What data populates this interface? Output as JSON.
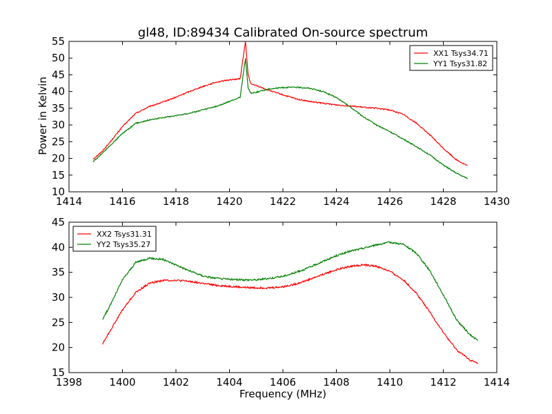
{
  "figure": {
    "title": "gl48, ID:89434 Calibrated On-source spectrum",
    "ylabel": "Power in Kelvin",
    "xlabel": "Frequency (MHz)"
  },
  "chart_data": [
    {
      "type": "line",
      "title": "gl48, ID:89434 Calibrated On-source spectrum",
      "xlabel": "",
      "ylabel": "Power in Kelvin",
      "xlim": [
        1414,
        1430
      ],
      "ylim": [
        10,
        55
      ],
      "xticks": [
        1414,
        1416,
        1418,
        1420,
        1422,
        1424,
        1426,
        1428,
        1430
      ],
      "yticks": [
        10,
        15,
        20,
        25,
        30,
        35,
        40,
        45,
        50,
        55
      ],
      "grid": false,
      "legend": "top-right",
      "series": [
        {
          "name": "XX1 Tsys34.71",
          "color": "#ff0000",
          "x": [
            1414.9,
            1415.2,
            1415.5,
            1416.0,
            1416.5,
            1417.0,
            1417.5,
            1418.0,
            1418.5,
            1419.0,
            1419.5,
            1420.0,
            1420.4,
            1420.6,
            1420.7,
            1420.8,
            1421.0,
            1421.5,
            1422.0,
            1422.5,
            1423.0,
            1423.5,
            1424.0,
            1424.5,
            1425.0,
            1425.5,
            1426.0,
            1426.5,
            1427.0,
            1427.5,
            1428.0,
            1428.5,
            1428.9
          ],
          "y": [
            19.8,
            21.8,
            24.5,
            29.5,
            33.5,
            35.5,
            36.8,
            38.3,
            40.0,
            41.5,
            42.8,
            43.5,
            43.8,
            55.0,
            45.0,
            42.3,
            41.8,
            40.3,
            39.0,
            37.8,
            37.0,
            36.5,
            36.0,
            35.7,
            35.3,
            35.0,
            34.5,
            33.2,
            30.5,
            27.0,
            23.0,
            19.5,
            17.8
          ]
        },
        {
          "name": "YY1 Tsys31.82",
          "color": "#008000",
          "x": [
            1414.9,
            1415.2,
            1415.5,
            1416.0,
            1416.5,
            1417.0,
            1417.5,
            1418.0,
            1418.5,
            1419.0,
            1419.5,
            1420.0,
            1420.4,
            1420.6,
            1420.7,
            1420.8,
            1421.0,
            1421.5,
            1422.0,
            1422.5,
            1423.0,
            1423.5,
            1424.0,
            1424.5,
            1425.0,
            1425.5,
            1426.0,
            1426.5,
            1427.0,
            1427.5,
            1428.0,
            1428.5,
            1428.9
          ],
          "y": [
            19.0,
            21.2,
            23.5,
            27.5,
            30.5,
            31.5,
            32.2,
            32.8,
            33.5,
            34.5,
            35.5,
            37.0,
            38.3,
            50.0,
            41.0,
            39.5,
            39.8,
            40.8,
            41.2,
            41.3,
            41.0,
            40.0,
            38.2,
            35.5,
            32.5,
            30.0,
            28.0,
            25.8,
            23.5,
            21.0,
            18.0,
            15.5,
            14.0
          ]
        }
      ]
    },
    {
      "type": "line",
      "title": "",
      "xlabel": "Frequency (MHz)",
      "ylabel": "",
      "xlim": [
        1398,
        1414
      ],
      "ylim": [
        15,
        45
      ],
      "xticks": [
        1398,
        1400,
        1402,
        1404,
        1406,
        1408,
        1410,
        1412,
        1414
      ],
      "yticks": [
        15,
        20,
        25,
        30,
        35,
        40,
        45
      ],
      "grid": false,
      "legend": "top-left",
      "series": [
        {
          "name": "XX2 Tsys31.31",
          "color": "#ff0000",
          "x": [
            1399.25,
            1399.5,
            1400.0,
            1400.5,
            1401.0,
            1401.5,
            1402.0,
            1402.5,
            1403.0,
            1403.5,
            1404.0,
            1404.5,
            1405.0,
            1405.5,
            1406.0,
            1406.5,
            1407.0,
            1407.5,
            1408.0,
            1408.5,
            1409.0,
            1409.5,
            1410.0,
            1410.5,
            1411.0,
            1411.5,
            1412.0,
            1412.5,
            1413.0,
            1413.3
          ],
          "y": [
            20.7,
            23.0,
            27.5,
            31.0,
            32.8,
            33.4,
            33.4,
            33.2,
            32.8,
            32.4,
            32.2,
            32.0,
            31.9,
            31.9,
            32.1,
            32.7,
            33.6,
            34.6,
            35.5,
            36.2,
            36.5,
            36.2,
            35.2,
            33.5,
            30.8,
            27.0,
            23.0,
            19.5,
            17.5,
            16.8
          ]
        },
        {
          "name": "YY2 Tsys35.27",
          "color": "#008000",
          "x": [
            1399.25,
            1399.5,
            1400.0,
            1400.5,
            1401.0,
            1401.5,
            1402.0,
            1402.5,
            1403.0,
            1403.5,
            1404.0,
            1404.5,
            1405.0,
            1405.5,
            1406.0,
            1406.5,
            1407.0,
            1407.5,
            1408.0,
            1408.5,
            1409.0,
            1409.5,
            1410.0,
            1410.5,
            1411.0,
            1411.5,
            1412.0,
            1412.5,
            1413.0,
            1413.3
          ],
          "y": [
            25.6,
            28.0,
            33.5,
            37.0,
            37.8,
            37.6,
            36.5,
            35.3,
            34.3,
            33.8,
            33.6,
            33.5,
            33.5,
            33.8,
            34.2,
            35.0,
            36.0,
            37.2,
            38.3,
            39.2,
            39.8,
            40.5,
            41.0,
            40.6,
            38.8,
            35.3,
            30.5,
            25.5,
            22.5,
            21.4
          ]
        }
      ]
    }
  ]
}
